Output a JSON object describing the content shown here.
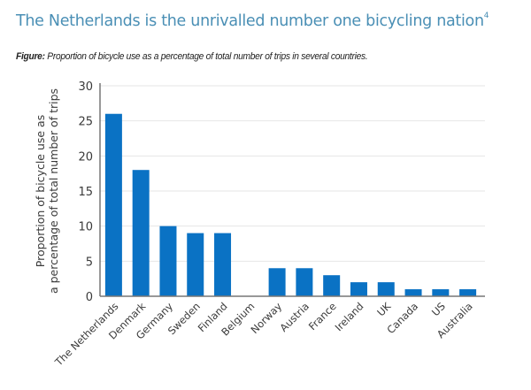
{
  "page": {
    "title": "The Netherlands is the unrivalled number one bicycling nation",
    "title_footnote": "4",
    "caption_label": "Figure:",
    "caption_text": "Proportion of bicycle use as a percentage of total number of trips in several countries."
  },
  "chart_data": {
    "type": "bar",
    "title": "Proportion of bicycle use as a percentage of total number of trips in several countries.",
    "xlabel": "",
    "ylabel": "Proportion of bicycle use as a percentage of total number of trips",
    "ylabel_lines": [
      "Proportion of bicycle use as",
      "a percentage of total number of trips"
    ],
    "ylim": [
      0,
      30
    ],
    "yticks": [
      0,
      5,
      10,
      15,
      20,
      25,
      30
    ],
    "grid": true,
    "legend": "none",
    "bar_color": "#0a72c4",
    "categories": [
      "The Netherlands",
      "Denmark",
      "Germany",
      "Sweden",
      "Finland",
      "Belgium",
      "Norway",
      "Austria",
      "France",
      "Ireland",
      "UK",
      "Canada",
      "US",
      "Australia"
    ],
    "values": [
      26,
      18,
      10,
      9,
      9,
      0,
      4,
      4,
      3,
      2,
      2,
      1,
      1,
      1
    ]
  }
}
